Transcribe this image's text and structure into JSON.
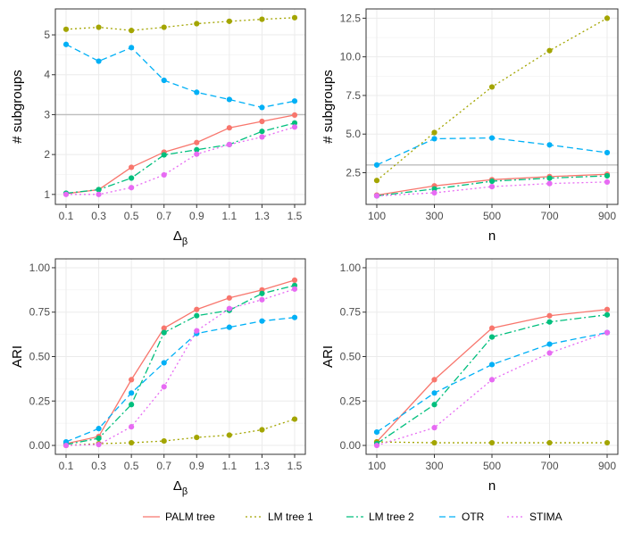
{
  "series_styles": [
    {
      "name": "PALM tree",
      "color": "#F8766D",
      "dash": "solid"
    },
    {
      "name": "LM tree 1",
      "color": "#A3A500",
      "dash": "dotted"
    },
    {
      "name": "LM tree 2",
      "color": "#00BF7D",
      "dash": "dashdot"
    },
    {
      "name": "OTR",
      "color": "#00B0F6",
      "dash": "dashed"
    },
    {
      "name": "STIMA",
      "color": "#E76BF3",
      "dash": "dotted"
    }
  ],
  "legend": {
    "position": "bottom",
    "entries": [
      "PALM tree",
      "LM tree 1",
      "LM tree 2",
      "OTR",
      "STIMA"
    ]
  },
  "chart_data": [
    {
      "type": "line",
      "panel": "top-left",
      "xlabel_main": "Δ",
      "xlabel_sub": "β",
      "ylabel": "# subgroups",
      "categories": [
        "0.1",
        "0.3",
        "0.5",
        "0.7",
        "0.9",
        "1.1",
        "1.3",
        "1.5"
      ],
      "ylim": [
        0.75,
        5.65
      ],
      "yticks": [
        1,
        2,
        3,
        4,
        5
      ],
      "ytick_labels": [
        "1",
        "2",
        "3",
        "4",
        "5"
      ],
      "reference_line": 3,
      "series": [
        {
          "name": "PALM tree",
          "values": [
            1.02,
            1.12,
            1.68,
            2.06,
            2.3,
            2.67,
            2.83,
            2.99
          ]
        },
        {
          "name": "LM tree 1",
          "values": [
            5.14,
            5.19,
            5.11,
            5.19,
            5.28,
            5.34,
            5.39,
            5.43
          ]
        },
        {
          "name": "LM tree 2",
          "values": [
            1.03,
            1.12,
            1.41,
            1.99,
            2.12,
            2.25,
            2.58,
            2.79
          ]
        },
        {
          "name": "OTR",
          "values": [
            4.76,
            4.34,
            4.68,
            3.86,
            3.56,
            3.38,
            3.18,
            3.34
          ]
        },
        {
          "name": "STIMA",
          "values": [
            1.0,
            1.0,
            1.17,
            1.49,
            2.01,
            2.25,
            2.44,
            2.69
          ]
        }
      ]
    },
    {
      "type": "line",
      "panel": "top-right",
      "xlabel_main": "n",
      "xlabel_sub": "",
      "ylabel": "# subgroups",
      "categories": [
        "100",
        "300",
        "500",
        "700",
        "900"
      ],
      "ylim": [
        0.45,
        13.1
      ],
      "yticks": [
        2.5,
        5.0,
        7.5,
        10.0,
        12.5
      ],
      "ytick_labels": [
        "2.5",
        "5.0",
        "7.5",
        "10.0",
        "12.5"
      ],
      "reference_line": 3,
      "series": [
        {
          "name": "PALM tree",
          "values": [
            1.05,
            1.65,
            2.05,
            2.25,
            2.4
          ]
        },
        {
          "name": "LM tree 1",
          "values": [
            2.0,
            5.1,
            8.05,
            10.4,
            12.5
          ]
        },
        {
          "name": "LM tree 2",
          "values": [
            1.0,
            1.45,
            1.95,
            2.15,
            2.3
          ]
        },
        {
          "name": "OTR",
          "values": [
            3.0,
            4.7,
            4.75,
            4.3,
            3.8
          ]
        },
        {
          "name": "STIMA",
          "values": [
            1.0,
            1.2,
            1.6,
            1.8,
            1.9
          ]
        }
      ]
    },
    {
      "type": "line",
      "panel": "bottom-left",
      "xlabel_main": "Δ",
      "xlabel_sub": "β",
      "ylabel": "ARI",
      "categories": [
        "0.1",
        "0.3",
        "0.5",
        "0.7",
        "0.9",
        "1.1",
        "1.3",
        "1.5"
      ],
      "ylim": [
        -0.05,
        1.05
      ],
      "yticks": [
        0,
        0.25,
        0.5,
        0.75,
        1.0
      ],
      "ytick_labels": [
        "0.00",
        "0.25",
        "0.50",
        "0.75",
        "1.00"
      ],
      "series": [
        {
          "name": "PALM tree",
          "values": [
            0.01,
            0.05,
            0.37,
            0.66,
            0.765,
            0.83,
            0.875,
            0.93
          ]
        },
        {
          "name": "LM tree 1",
          "values": [
            0.0,
            0.01,
            0.015,
            0.025,
            0.045,
            0.058,
            0.088,
            0.148
          ]
        },
        {
          "name": "LM tree 2",
          "values": [
            0.005,
            0.04,
            0.23,
            0.635,
            0.73,
            0.76,
            0.855,
            0.9
          ]
        },
        {
          "name": "OTR",
          "values": [
            0.02,
            0.095,
            0.295,
            0.465,
            0.63,
            0.665,
            0.7,
            0.72
          ]
        },
        {
          "name": "STIMA",
          "values": [
            0.0,
            0.005,
            0.105,
            0.33,
            0.645,
            0.77,
            0.82,
            0.88
          ]
        }
      ]
    },
    {
      "type": "line",
      "panel": "bottom-right",
      "xlabel_main": "n",
      "xlabel_sub": "",
      "ylabel": "ARI",
      "categories": [
        "100",
        "300",
        "500",
        "700",
        "900"
      ],
      "ylim": [
        -0.05,
        1.05
      ],
      "yticks": [
        0,
        0.25,
        0.5,
        0.75,
        1.0
      ],
      "ytick_labels": [
        "0.00",
        "0.25",
        "0.50",
        "0.75",
        "1.00"
      ],
      "series": [
        {
          "name": "PALM tree",
          "values": [
            0.02,
            0.37,
            0.66,
            0.73,
            0.765
          ]
        },
        {
          "name": "LM tree 1",
          "values": [
            0.02,
            0.015,
            0.015,
            0.015,
            0.015
          ]
        },
        {
          "name": "LM tree 2",
          "values": [
            0.01,
            0.23,
            0.61,
            0.695,
            0.735
          ]
        },
        {
          "name": "OTR",
          "values": [
            0.075,
            0.295,
            0.455,
            0.57,
            0.635
          ]
        },
        {
          "name": "STIMA",
          "values": [
            0.0,
            0.1,
            0.37,
            0.52,
            0.635
          ]
        }
      ]
    }
  ]
}
